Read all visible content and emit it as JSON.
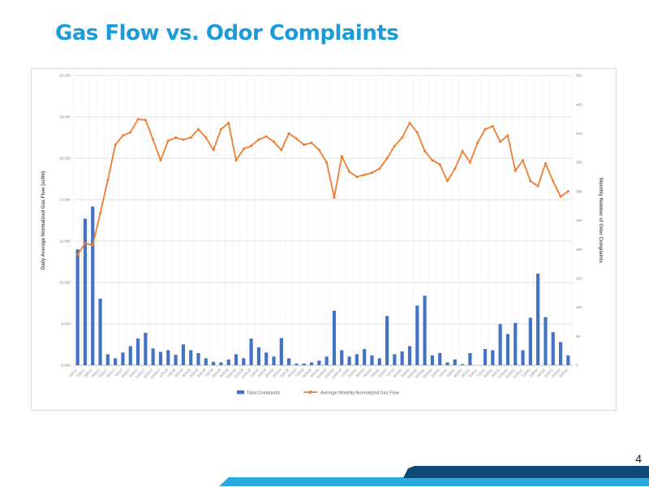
{
  "slide": {
    "title": "Gas Flow vs. Odor Complaints",
    "page_number": "4",
    "colors": {
      "title": "#1b9bd7",
      "bar": "#4472c4",
      "line": "#ed7d31",
      "footer_cyan": "#29abe2",
      "footer_navy": "#0d4b74",
      "axis_text": "#7f7f7f",
      "axis_title_text": "#595959",
      "gridline": "#d9d9d9",
      "minor_gridline": "#efefef"
    }
  },
  "chart_data": {
    "type": "bar",
    "subtype": "combo-bar-line",
    "grid": true,
    "legend_position": "bottom",
    "categories": [
      "1/2017",
      "2/2017",
      "3/2017",
      "4/2017",
      "5/2017",
      "6/2017",
      "7/2017",
      "8/2017",
      "9/2017",
      "10/2017",
      "11/2017",
      "12/2017",
      "1/2018",
      "2/2018",
      "3/2018",
      "4/2018",
      "5/2018",
      "6/2018",
      "7/2018",
      "8/2018",
      "9/2018",
      "10/2018",
      "11/2018",
      "12/2018",
      "1/2019",
      "2/2019",
      "3/2019",
      "4/2019",
      "5/2019",
      "6/2019",
      "7/2019",
      "8/2019",
      "9/2019",
      "10/2019",
      "11/2019",
      "12/2019",
      "1/2020",
      "2/2020",
      "3/2020",
      "4/2020",
      "5/2020",
      "6/2020",
      "7/2020",
      "8/2020",
      "9/2020",
      "10/2020",
      "11/2020",
      "12/2020",
      "1/2021",
      "2/2021",
      "3/2021",
      "4/2021",
      "5/2021",
      "6/2021",
      "7/2021",
      "8/2021",
      "9/2021",
      "10/2021",
      "11/2021",
      "12/2021",
      "1/2022",
      "2/2022",
      "3/2022",
      "4/2022",
      "5/2022",
      "6/2022"
    ],
    "series": [
      {
        "name": "Total Complaints",
        "type": "bar",
        "axis": "right",
        "color": "#4472c4",
        "values": [
          200,
          253,
          274,
          115,
          19,
          12,
          22,
          33,
          46,
          56,
          29,
          23,
          26,
          18,
          36,
          26,
          21,
          12,
          6,
          5,
          10,
          19,
          12,
          46,
          31,
          22,
          15,
          47,
          12,
          3,
          3,
          5,
          8,
          15,
          94,
          26,
          15,
          19,
          28,
          17,
          12,
          85,
          19,
          24,
          33,
          103,
          120,
          17,
          21,
          5,
          10,
          2,
          21,
          0,
          28,
          26,
          71,
          54,
          73,
          26,
          82,
          158,
          83,
          57,
          40,
          17
        ]
      },
      {
        "name": "Average Monthly Normalized Gas Flow",
        "type": "line",
        "axis": "left",
        "color": "#ed7d31",
        "values": [
          11350,
          11900,
          11800,
          13350,
          14950,
          16650,
          17100,
          17250,
          17880,
          17850,
          16900,
          15900,
          16850,
          17000,
          16900,
          17000,
          17400,
          17000,
          16400,
          17400,
          17700,
          15900,
          16450,
          16600,
          16900,
          17050,
          16800,
          16400,
          17200,
          16950,
          16650,
          16750,
          16400,
          15800,
          14100,
          16100,
          15350,
          15100,
          15200,
          15300,
          15500,
          16000,
          16600,
          17000,
          17700,
          17250,
          16350,
          15900,
          15700,
          14900,
          15500,
          16350,
          15800,
          16750,
          17400,
          17550,
          16800,
          17100,
          15400,
          15900,
          14900,
          14650,
          15750,
          14900,
          14150,
          14400
        ]
      }
    ],
    "left_axis": {
      "title": "Daily Average Normalized Gas Flow (scfm)",
      "min": 6000,
      "max": 20000,
      "step": 2000,
      "tick_labels": [
        "6,000",
        "8,000",
        "10,000",
        "12,000",
        "14,000",
        "16,000",
        "18,000",
        "20,000"
      ]
    },
    "right_axis": {
      "title": "Monthly Number of Odor Complaints",
      "min": 0,
      "max": 500,
      "step": 50,
      "tick_labels": [
        "0",
        "50",
        "100",
        "150",
        "200",
        "250",
        "300",
        "350",
        "400",
        "450",
        "500"
      ]
    }
  }
}
